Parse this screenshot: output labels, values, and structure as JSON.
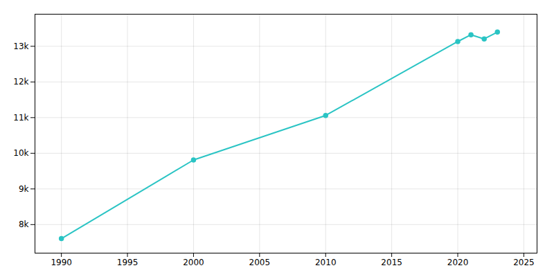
{
  "chart_data": {
    "type": "line",
    "x": [
      1990,
      2000,
      2010,
      2020,
      2021,
      2022,
      2023
    ],
    "values": [
      7607,
      9812,
      11061,
      13133,
      13323,
      13207,
      13399
    ],
    "color": "#2ac4c4",
    "marker": "circle",
    "xlim": [
      1988,
      2026
    ],
    "ylim": [
      7200,
      13900
    ],
    "xticks": [
      1990,
      1995,
      2000,
      2005,
      2010,
      2015,
      2020,
      2025
    ],
    "yticks": [
      {
        "value": 8000,
        "label": "8k"
      },
      {
        "value": 9000,
        "label": "9k"
      },
      {
        "value": 10000,
        "label": "10k"
      },
      {
        "value": 11000,
        "label": "11k"
      },
      {
        "value": 12000,
        "label": "12k"
      },
      {
        "value": 13000,
        "label": "13k"
      }
    ],
    "grid": true
  }
}
